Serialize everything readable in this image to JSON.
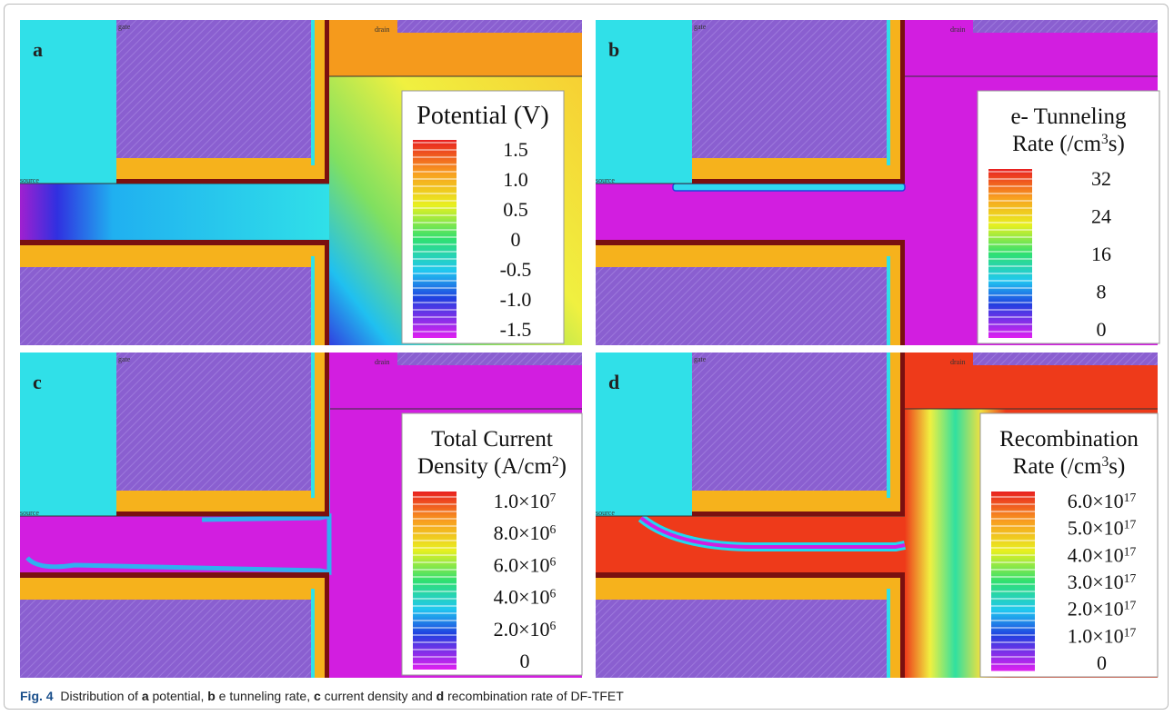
{
  "figure": {
    "panels": [
      {
        "letter": "a",
        "gate": "gate",
        "drain": "drain",
        "source": "source",
        "legend": {
          "title": [
            [
              {
                "t": "Potential (V)"
              }
            ]
          ],
          "labels": [
            [
              {
                "t": "1.5"
              }
            ],
            [
              {
                "t": "1.0"
              }
            ],
            [
              {
                "t": "0.5"
              }
            ],
            [
              {
                "t": "0"
              }
            ],
            [
              {
                "t": "-0.5"
              }
            ],
            [
              {
                "t": "-1.0"
              }
            ],
            [
              {
                "t": "-1.5"
              }
            ]
          ]
        }
      },
      {
        "letter": "b",
        "gate": "gate",
        "drain": "drain",
        "source": "source",
        "legend": {
          "title": [
            [
              {
                "t": "e- Tunneling"
              }
            ],
            [
              {
                "t": "Rate (/cm"
              },
              {
                "sup": "3"
              },
              {
                "t": "s)"
              }
            ]
          ],
          "labels": [
            [
              {
                "t": "32"
              }
            ],
            [
              {
                "t": "24"
              }
            ],
            [
              {
                "t": "16"
              }
            ],
            [
              {
                "t": "8"
              }
            ],
            [
              {
                "t": "0"
              }
            ]
          ]
        }
      },
      {
        "letter": "c",
        "gate": "gate",
        "drain": "drain",
        "source": "source",
        "legend": {
          "title": [
            [
              {
                "t": "Total Current"
              }
            ],
            [
              {
                "t": "Density (A/cm"
              },
              {
                "sup": "2"
              },
              {
                "t": ")"
              }
            ]
          ],
          "labels": [
            [
              {
                "t": "1.0×10"
              },
              {
                "sup": "7"
              }
            ],
            [
              {
                "t": "8.0×10"
              },
              {
                "sup": "6"
              }
            ],
            [
              {
                "t": "6.0×10"
              },
              {
                "sup": "6"
              }
            ],
            [
              {
                "t": "4.0×10"
              },
              {
                "sup": "6"
              }
            ],
            [
              {
                "t": "2.0×10"
              },
              {
                "sup": "6"
              }
            ],
            [
              {
                "t": "0"
              }
            ]
          ]
        }
      },
      {
        "letter": "d",
        "gate": "gate",
        "drain": "drain",
        "source": "source",
        "legend": {
          "title": [
            [
              {
                "t": "Recombination"
              }
            ],
            [
              {
                "t": "Rate (/cm"
              },
              {
                "sup": "3"
              },
              {
                "t": "s)"
              }
            ]
          ],
          "labels": [
            [
              {
                "t": "6.0×10"
              },
              {
                "sup": "17"
              }
            ],
            [
              {
                "t": "5.0×10"
              },
              {
                "sup": "17"
              }
            ],
            [
              {
                "t": "4.0×10"
              },
              {
                "sup": "17"
              }
            ],
            [
              {
                "t": "3.0×10"
              },
              {
                "sup": "17"
              }
            ],
            [
              {
                "t": "2.0×10"
              },
              {
                "sup": "17"
              }
            ],
            [
              {
                "t": "1.0×10"
              },
              {
                "sup": "17"
              }
            ],
            [
              {
                "t": "0"
              }
            ]
          ]
        }
      }
    ],
    "caption": [
      {
        "lead": "Fig. 4"
      },
      {
        "t": "  Distribution of "
      },
      {
        "b": "a"
      },
      {
        "t": " potential, "
      },
      {
        "b": "b"
      },
      {
        "t": " e tunneling rate, "
      },
      {
        "b": "c"
      },
      {
        "t": " current density and "
      },
      {
        "b": "d"
      },
      {
        "t": " recombination rate of DF-TFET"
      }
    ]
  }
}
